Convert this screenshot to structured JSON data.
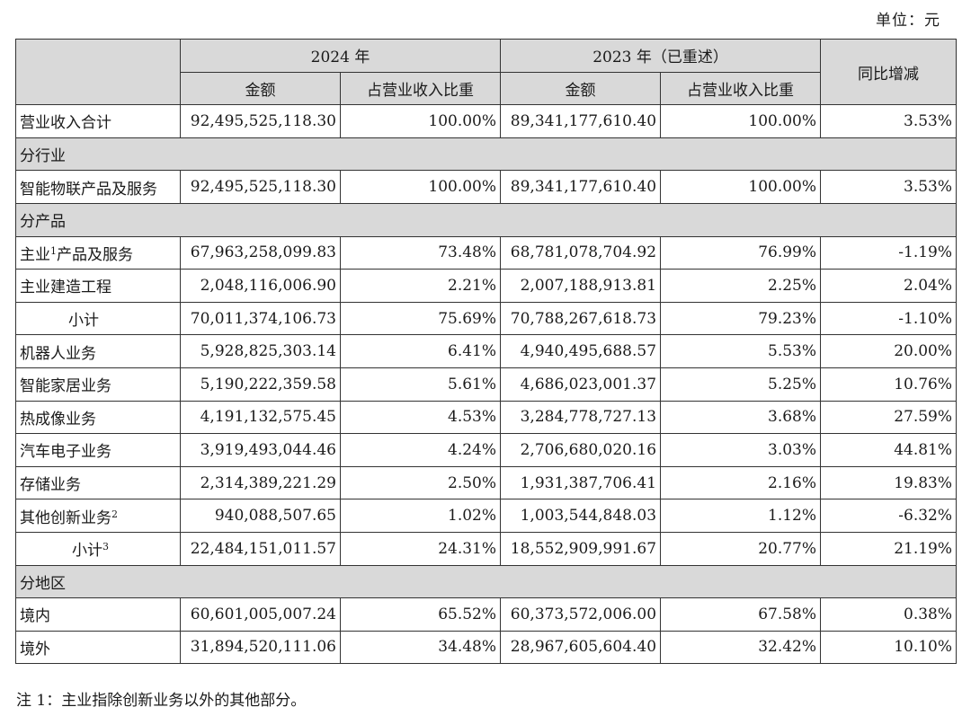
{
  "unit_label": "单位：元",
  "header": {
    "year_2024": "2024 年",
    "year_2023": "2023 年（已重述）",
    "yoy": "同比增减",
    "amount": "金额",
    "share": "占营业收入比重"
  },
  "total_row": {
    "label": "营业收入合计",
    "a2024": "92,495,525,118.30",
    "s2024": "100.00%",
    "a2023": "89,341,177,610.40",
    "s2023": "100.00%",
    "yoy": "3.53%"
  },
  "sections": {
    "industry": "分行业",
    "product": "分产品",
    "region": "分地区"
  },
  "industry_rows": [
    {
      "label": "智能物联产品及服务",
      "a2024": "92,495,525,118.30",
      "s2024": "100.00%",
      "a2023": "89,341,177,610.40",
      "s2023": "100.00%",
      "yoy": "3.53%"
    }
  ],
  "product_rows": [
    {
      "label": "主业",
      "sup": "1",
      "label_rest": "产品及服务",
      "a2024": "67,963,258,099.83",
      "s2024": "73.48%",
      "a2023": "68,781,078,704.92",
      "s2023": "76.99%",
      "yoy": "-1.19%"
    },
    {
      "label": "主业建造工程",
      "a2024": "2,048,116,006.90",
      "s2024": "2.21%",
      "a2023": "2,007,188,913.81",
      "s2023": "2.25%",
      "yoy": "2.04%"
    },
    {
      "label": "小计",
      "a2024": "70,011,374,106.73",
      "s2024": "75.69%",
      "a2023": "70,788,267,618.73",
      "s2023": "79.23%",
      "yoy": "-1.10%"
    },
    {
      "label": "机器人业务",
      "a2024": "5,928,825,303.14",
      "s2024": "6.41%",
      "a2023": "4,940,495,688.57",
      "s2023": "5.53%",
      "yoy": "20.00%"
    },
    {
      "label": "智能家居业务",
      "a2024": "5,190,222,359.58",
      "s2024": "5.61%",
      "a2023": "4,686,023,001.37",
      "s2023": "5.25%",
      "yoy": "10.76%"
    },
    {
      "label": "热成像业务",
      "a2024": "4,191,132,575.45",
      "s2024": "4.53%",
      "a2023": "3,284,778,727.13",
      "s2023": "3.68%",
      "yoy": "27.59%"
    },
    {
      "label": "汽车电子业务",
      "a2024": "3,919,493,044.46",
      "s2024": "4.24%",
      "a2023": "2,706,680,020.16",
      "s2023": "3.03%",
      "yoy": "44.81%"
    },
    {
      "label": "存储业务",
      "a2024": "2,314,389,221.29",
      "s2024": "2.50%",
      "a2023": "1,931,387,706.41",
      "s2023": "2.16%",
      "yoy": "19.83%"
    },
    {
      "label": "其他创新业务",
      "sup": "2",
      "a2024": "940,088,507.65",
      "s2024": "1.02%",
      "a2023": "1,003,544,848.03",
      "s2023": "1.12%",
      "yoy": "-6.32%"
    },
    {
      "label": "小计",
      "sup": "3",
      "a2024": "22,484,151,011.57",
      "s2024": "24.31%",
      "a2023": "18,552,909,991.67",
      "s2023": "20.77%",
      "yoy": "21.19%"
    }
  ],
  "region_rows": [
    {
      "label": "境内",
      "a2024": "60,601,005,007.24",
      "s2024": "65.52%",
      "a2023": "60,373,572,006.00",
      "s2023": "67.58%",
      "yoy": "0.38%"
    },
    {
      "label": "境外",
      "a2024": "31,894,520,111.06",
      "s2024": "34.48%",
      "a2023": "28,967,605,604.40",
      "s2023": "32.42%",
      "yoy": "10.10%"
    }
  ],
  "footnote": "注 1：主业指除创新业务以外的其他部分。"
}
